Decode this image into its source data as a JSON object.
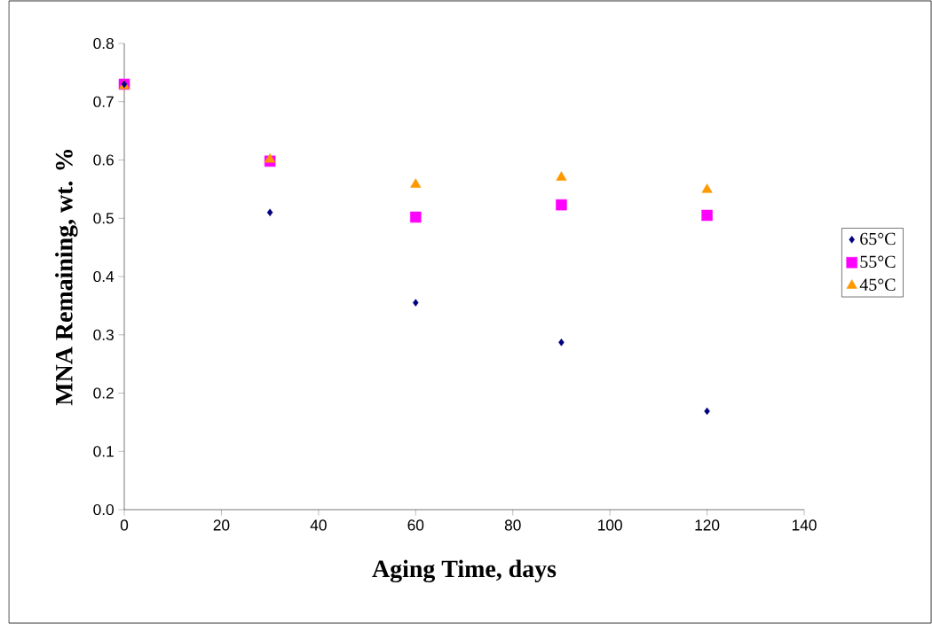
{
  "chart_data": {
    "type": "scatter",
    "xlabel": "Aging Time, days",
    "ylabel": "MNA Remaining, wt. %",
    "x": [
      0,
      30,
      60,
      90,
      120
    ],
    "series": [
      {
        "name": "65°C",
        "color": "#000080",
        "marker": "diamond",
        "values": [
          0.73,
          0.51,
          0.355,
          0.287,
          0.169
        ]
      },
      {
        "name": "55°C",
        "color": "#ff00ff",
        "marker": "square",
        "values": [
          0.73,
          0.598,
          0.502,
          0.523,
          0.505
        ]
      },
      {
        "name": "45°C",
        "color": "#ff9900",
        "marker": "triangle",
        "values": [
          0.727,
          0.601,
          0.558,
          0.57,
          0.549
        ]
      }
    ],
    "xlim": [
      0,
      140
    ],
    "ylim": [
      0,
      0.8
    ],
    "xticks": [
      0,
      20,
      40,
      60,
      80,
      100,
      120,
      140
    ],
    "yticks": [
      {
        "value": 0,
        "label": "0.0"
      },
      0.1,
      0.2,
      0.3,
      0.4,
      0.5,
      0.6,
      0.7,
      0.8
    ],
    "grid": false,
    "legend": "right"
  }
}
